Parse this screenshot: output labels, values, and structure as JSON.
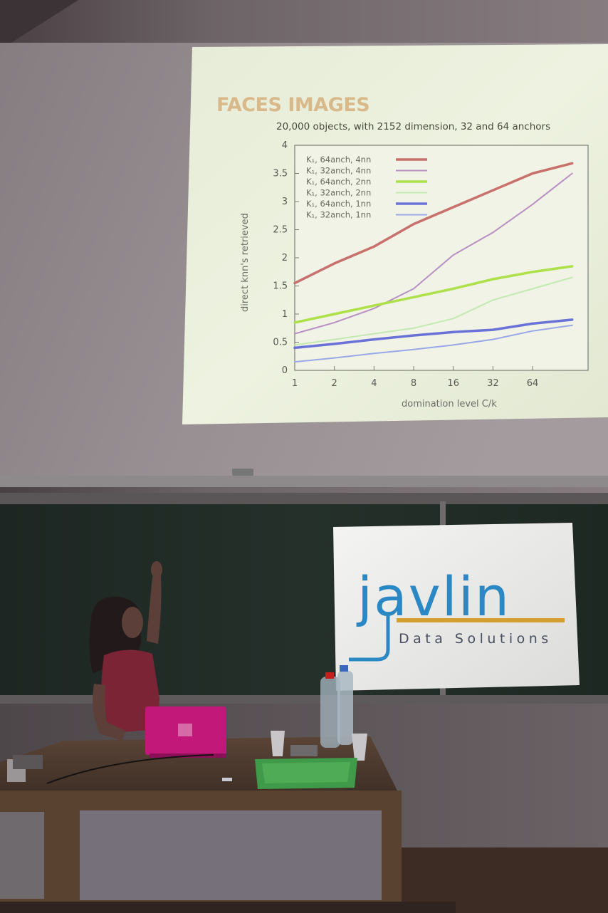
{
  "slide": {
    "title": "FACES IMAGES",
    "subtitle": "20,000 objects, with 2152 dimension, 32 and 64 anchors"
  },
  "chart_data": {
    "type": "line",
    "xlabel": "domination level C/k",
    "ylabel": "direct knn's retrieved",
    "x_scale": "log2",
    "x_ticks": [
      "1",
      "2",
      "4",
      "8",
      "16",
      "32",
      "64"
    ],
    "y_ticks": [
      "0",
      "0.5",
      "1",
      "1.5",
      "2",
      "2.5",
      "3",
      "3.5",
      "4"
    ],
    "x": [
      1,
      2,
      4,
      8,
      16,
      32,
      64,
      128
    ],
    "ylim": [
      0,
      4
    ],
    "legend_position": "top-left",
    "series": [
      {
        "name": "K₁, 64anch, 4nn",
        "color": "#c8706c",
        "width": 3.5,
        "values": [
          1.55,
          1.9,
          2.2,
          2.6,
          2.9,
          3.2,
          3.5,
          3.68
        ]
      },
      {
        "name": "K₁, 32anch, 4nn",
        "color": "#b890c4",
        "width": 2,
        "values": [
          0.65,
          0.85,
          1.1,
          1.45,
          2.05,
          2.45,
          2.95,
          3.5
        ]
      },
      {
        "name": "K₁, 64anch, 2nn",
        "color": "#aee04a",
        "width": 3.5,
        "values": [
          0.85,
          1.0,
          1.15,
          1.3,
          1.45,
          1.62,
          1.75,
          1.85
        ]
      },
      {
        "name": "K₁, 32anch, 2nn",
        "color": "#c2eab0",
        "width": 2,
        "values": [
          0.45,
          0.55,
          0.65,
          0.75,
          0.92,
          1.25,
          1.45,
          1.65
        ]
      },
      {
        "name": "K₁, 64anch, 1nn",
        "color": "#6a72d8",
        "width": 3.5,
        "values": [
          0.4,
          0.47,
          0.55,
          0.62,
          0.68,
          0.72,
          0.83,
          0.9
        ]
      },
      {
        "name": "K₁, 32anch, 1nn",
        "color": "#98a8e8",
        "width": 2,
        "values": [
          0.15,
          0.22,
          0.3,
          0.37,
          0.45,
          0.55,
          0.7,
          0.8
        ]
      }
    ]
  },
  "banner": {
    "brand": "javlin",
    "tagline": "Data Solutions",
    "brand_color": "#2a88c4",
    "underline_color": "#d2a030"
  }
}
